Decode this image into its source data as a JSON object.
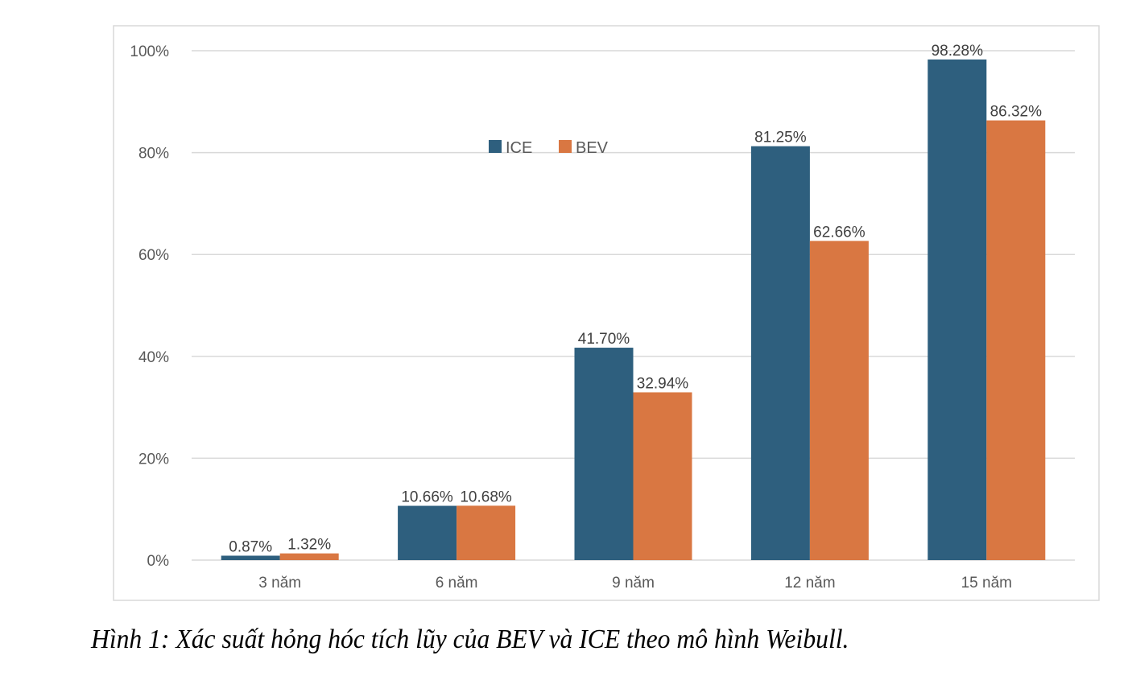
{
  "chart_data": {
    "type": "bar",
    "title": "",
    "categories": [
      "3 năm",
      "6 năm",
      "9 năm",
      "12 năm",
      "15 năm"
    ],
    "series": [
      {
        "name": "ICE",
        "color": "#2e5f7e",
        "values": [
          0.87,
          10.66,
          41.7,
          81.25,
          98.28
        ],
        "labels": [
          "0.87%",
          "10.66%",
          "41.70%",
          "81.25%",
          "98.28%"
        ]
      },
      {
        "name": "BEV",
        "color": "#d97742",
        "values": [
          1.32,
          10.68,
          32.94,
          62.66,
          86.32
        ],
        "labels": [
          "1.32%",
          "10.68%",
          "32.94%",
          "62.66%",
          "86.32%"
        ]
      }
    ],
    "xlabel": "",
    "ylabel": "",
    "ylim": [
      0,
      100
    ],
    "yticks": [
      0,
      20,
      40,
      60,
      80,
      100
    ],
    "ytick_labels": [
      "0%",
      "20%",
      "40%",
      "60%",
      "80%",
      "100%"
    ],
    "grid": true,
    "legend_position": "top-center"
  },
  "caption": "Hình 1: Xác suất hỏng hóc tích lũy của BEV và ICE theo mô hình Weibull."
}
